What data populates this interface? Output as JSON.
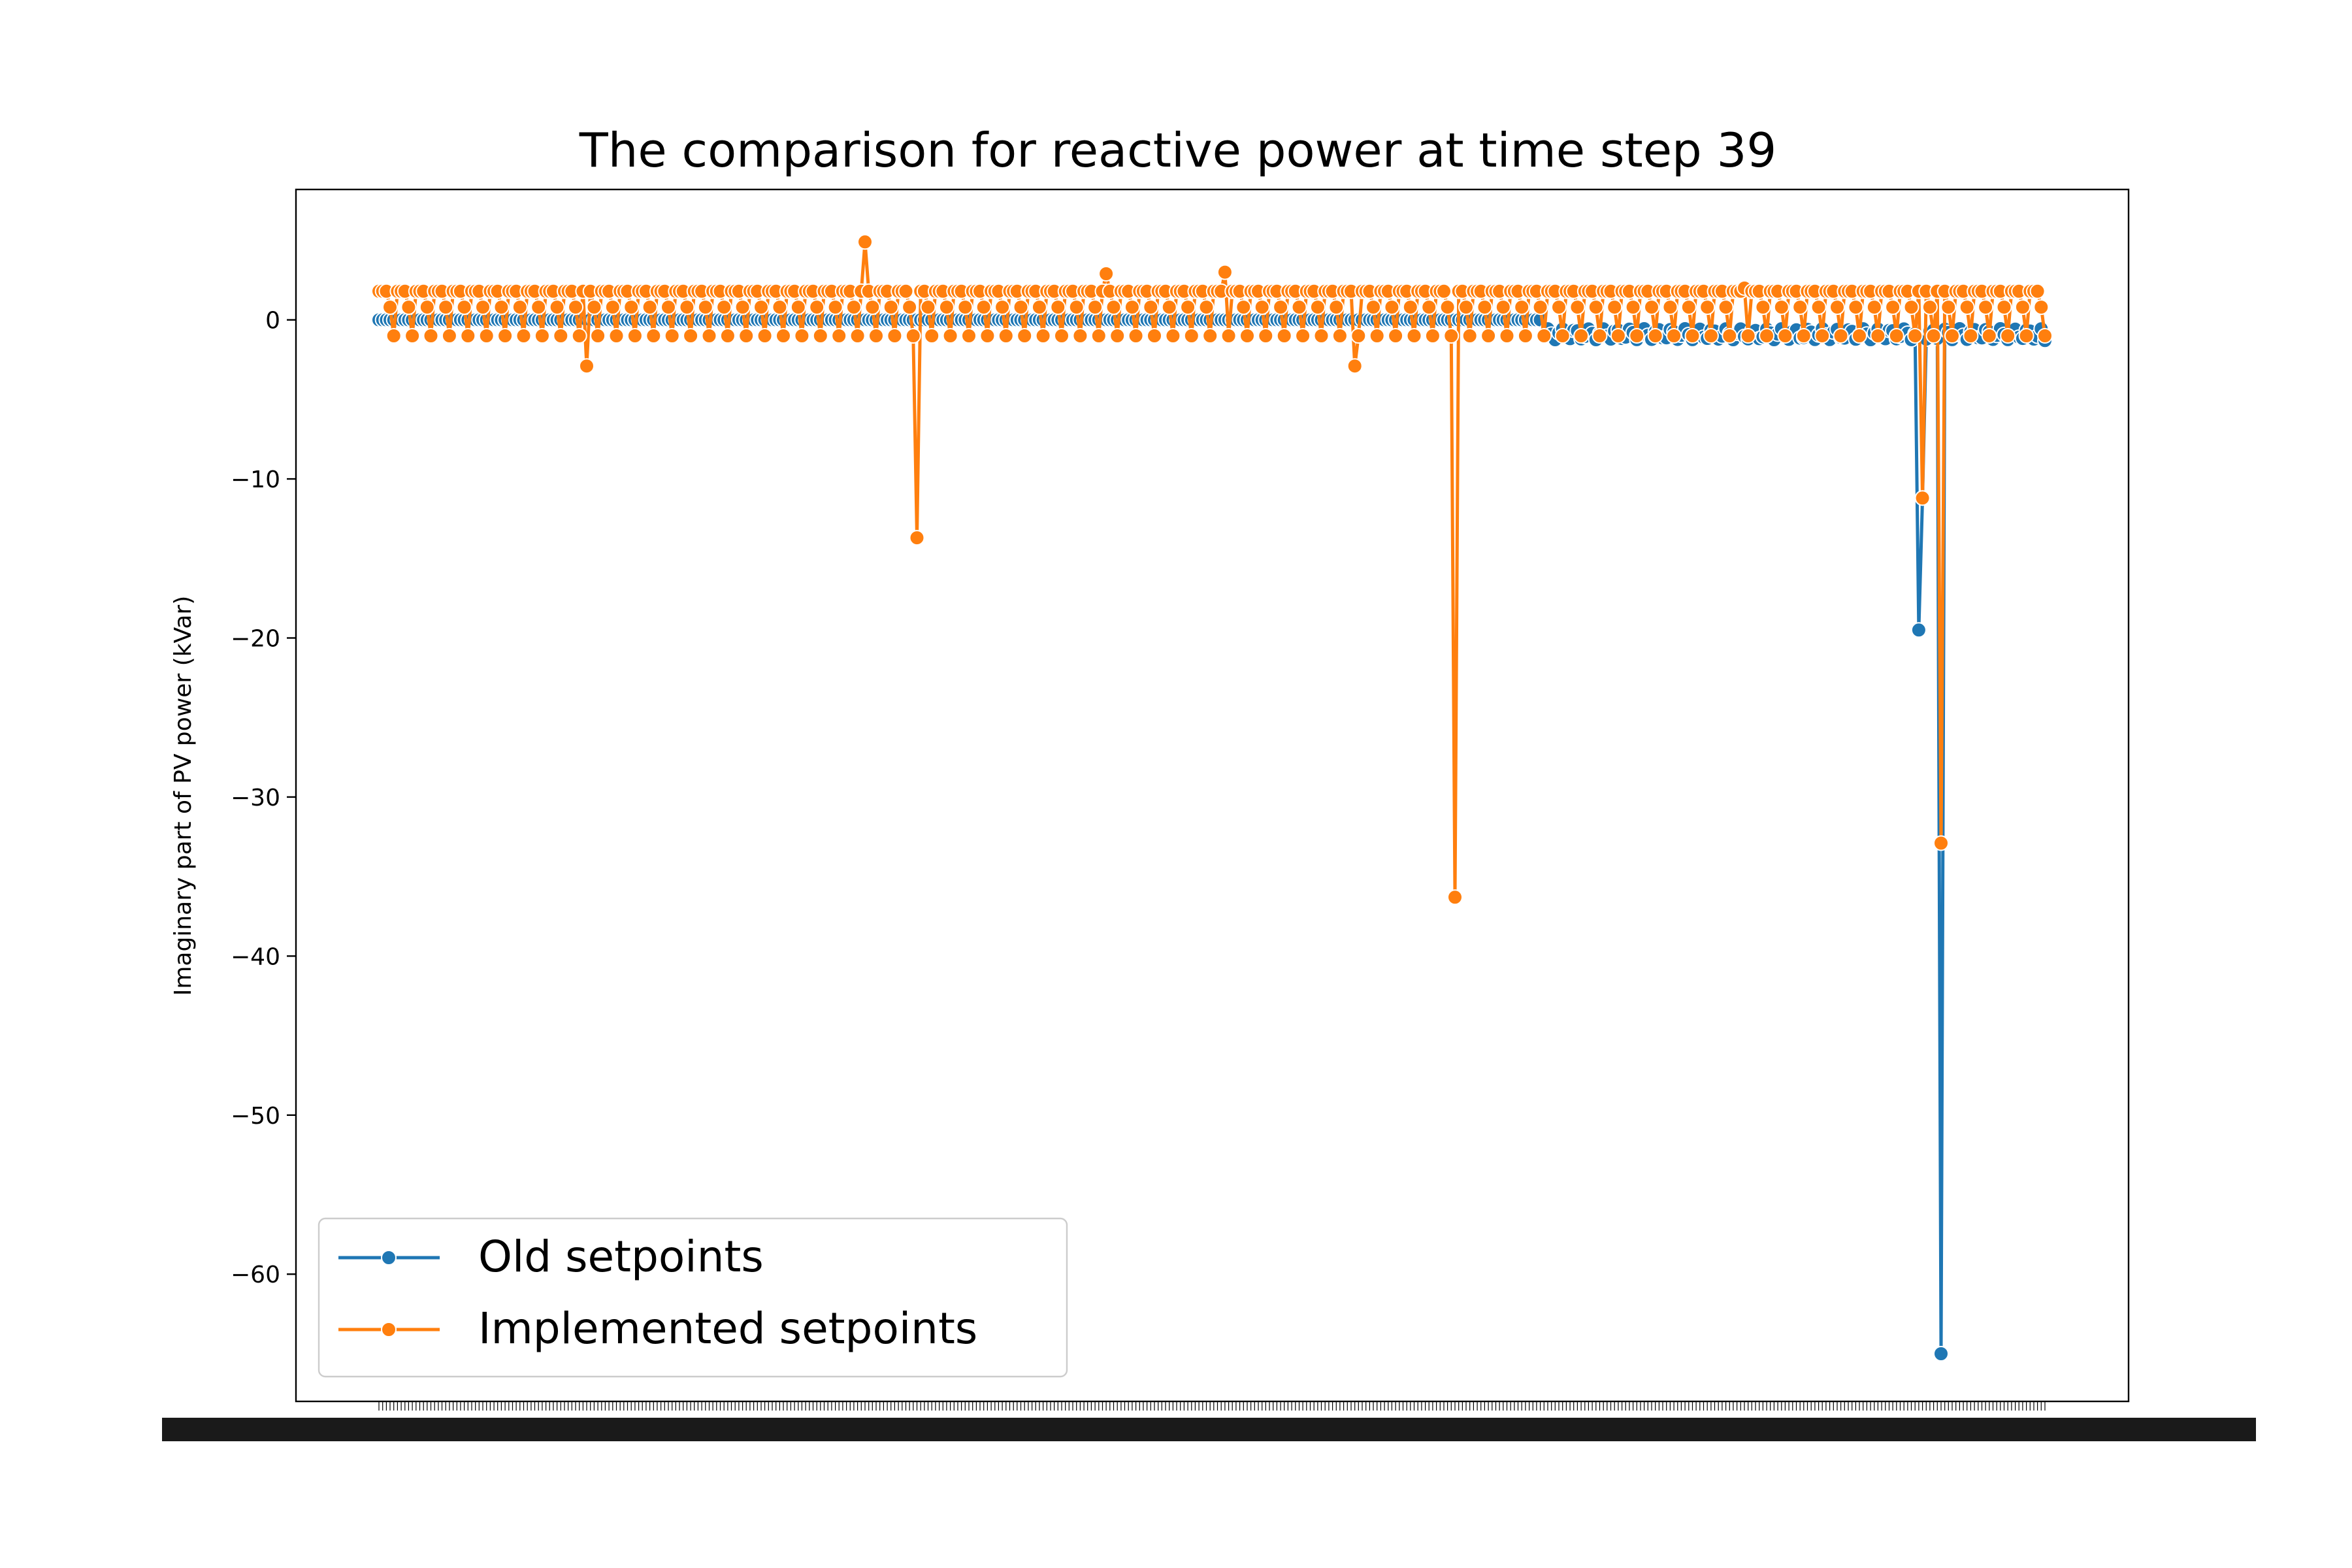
{
  "chart_data": {
    "type": "line",
    "title": "The comparison for reactive power at time step 39",
    "xlabel": "",
    "ylabel": "Imaginary part of PV power (kVar)",
    "ylim": [
      -68.0,
      8.2
    ],
    "yticks": [
      0,
      -10,
      -20,
      -30,
      -40,
      -50,
      -60
    ],
    "ytick_labels": [
      "0",
      "−10",
      "−20",
      "−30",
      "−40",
      "−50",
      "−60"
    ],
    "x_points": 450,
    "x_tick_labels_note": "overlapping PV identifiers (illegible)",
    "grid": false,
    "legend": {
      "position": "lower-left"
    },
    "series": [
      {
        "name": "Old setpoints",
        "color": "#1f77b4",
        "marker": "o",
        "base": 0.0,
        "segments": [
          {
            "from": 0,
            "to": 313,
            "value": 0.0
          },
          {
            "from": 314,
            "to": 449,
            "value": -0.9
          }
        ],
        "spikes": [
          {
            "index": 415,
            "value": -19.5
          },
          {
            "index": 416,
            "value": -11.2
          },
          {
            "index": 421,
            "value": -65.0
          },
          {
            "index": 449,
            "value": -1.3
          }
        ]
      },
      {
        "name": "Implemented setpoints",
        "color": "#ff7f0e",
        "marker": "o",
        "pattern_values": [
          1.8,
          -1.8,
          1.8,
          0.5,
          -1.0,
          1.5,
          0.0,
          1.8,
          -1.8,
          0.8,
          1.8,
          -0.5
        ],
        "spikes": [
          {
            "index": 131,
            "value": 4.9
          },
          {
            "index": 145,
            "value": -13.7
          },
          {
            "index": 290,
            "value": -36.3
          },
          {
            "index": 416,
            "value": -11.2
          },
          {
            "index": 421,
            "value": -32.9
          },
          {
            "index": 228,
            "value": 3.0
          },
          {
            "index": 196,
            "value": 2.9
          },
          {
            "index": 56,
            "value": -2.9
          },
          {
            "index": 263,
            "value": -2.9
          },
          {
            "index": 368,
            "value": 2.0
          }
        ]
      }
    ]
  }
}
